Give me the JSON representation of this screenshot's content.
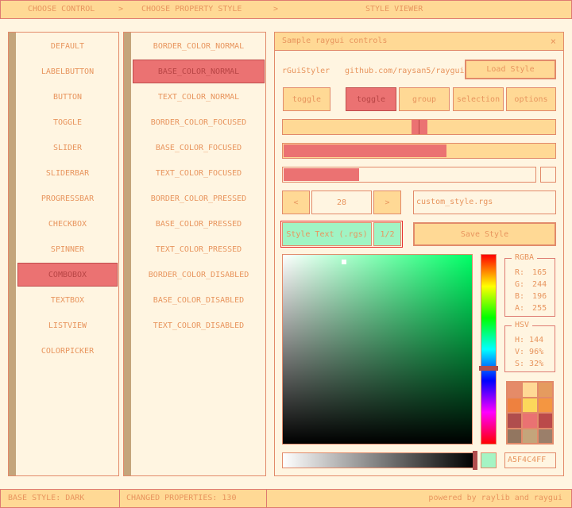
{
  "header": {
    "step1": "CHOOSE CONTROL",
    "sep": ">",
    "step2": "CHOOSE PROPERTY STYLE",
    "step3": "STYLE VIEWER"
  },
  "controls": [
    "DEFAULT",
    "LABELBUTTON",
    "BUTTON",
    "TOGGLE",
    "SLIDER",
    "SLIDERBAR",
    "PROGRESSBAR",
    "CHECKBOX",
    "SPINNER",
    "COMBOBOX",
    "TEXTBOX",
    "LISTVIEW",
    "COLORPICKER"
  ],
  "controls_selected": "COMBOBOX",
  "properties": [
    "BORDER_COLOR_NORMAL",
    "BASE_COLOR_NORMAL",
    "TEXT_COLOR_NORMAL",
    "BORDER_COLOR_FOCUSED",
    "BASE_COLOR_FOCUSED",
    "TEXT_COLOR_FOCUSED",
    "BORDER_COLOR_PRESSED",
    "BASE_COLOR_PRESSED",
    "TEXT_COLOR_PRESSED",
    "BORDER_COLOR_DISABLED",
    "BASE_COLOR_DISABLED",
    "TEXT_COLOR_DISABLED"
  ],
  "properties_selected": "BASE_COLOR_NORMAL",
  "window": {
    "title": "Sample raygui controls",
    "close": "×",
    "app_label": "rGuiStyler",
    "link": "github.com/raysan5/raygui",
    "load_button": "Load Style",
    "toggle": "toggle",
    "toggle_group": [
      "toggle",
      "group",
      "selection",
      "options"
    ],
    "toggle_group_active": 0,
    "slider_value": 0.5,
    "sliderbar_value": 0.6,
    "progress_value": 0.3,
    "checkbox_checked": false,
    "spinner": {
      "value": "28",
      "dec": "<",
      "inc": ">"
    },
    "textbox": "custom_style.rgs",
    "combobox": {
      "label": "Style Text (.rgs)",
      "count": "1/2"
    },
    "save_button": "Save Style",
    "picker": {
      "hue": 144,
      "alpha": 1.0,
      "rgba": {
        "title": "RGBA",
        "r_label": "R:",
        "r": "165",
        "g_label": "G:",
        "g": "244",
        "b_label": "B:",
        "b": "196",
        "a_label": "A:",
        "a": "255"
      },
      "hsv": {
        "title": "HSV",
        "h_label": "H:",
        "h": "144",
        "v_label": "V:",
        "v": "96%",
        "s_label": "S:",
        "s": "32%"
      },
      "hex": "A5F4C4FF",
      "color": "#a5f4c4",
      "palette": [
        "#e58b68",
        "#ffd995",
        "#e59b5f",
        "#ee813f",
        "#fcd85b",
        "#f49641",
        "#b04d4d",
        "#ea7272",
        "#bb4a4a",
        "#927660",
        "#c4a57b",
        "#9b7f6a"
      ]
    }
  },
  "status": {
    "base_style": "BASE STYLE: DARK",
    "changed": "CHANGED PROPERTIES: 130",
    "powered": "powered by raylib and raygui"
  }
}
